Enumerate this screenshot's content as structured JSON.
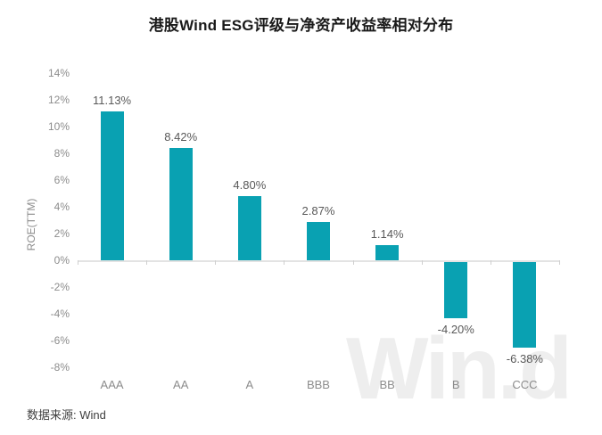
{
  "chart_data": {
    "type": "bar",
    "title": "港股Wind ESG评级与净资产收益率相对分布",
    "categories": [
      "AAA",
      "AA",
      "A",
      "BBB",
      "BB",
      "B",
      "CCC"
    ],
    "values": [
      11.13,
      8.42,
      4.8,
      2.87,
      1.14,
      -4.2,
      -6.38
    ],
    "value_labels": [
      "11.13%",
      "8.42%",
      "4.80%",
      "2.87%",
      "1.14%",
      "-4.20%",
      "-6.38%"
    ],
    "xlabel": "",
    "ylabel": "ROE(TTM)",
    "y_axis": {
      "min": -8,
      "max": 14,
      "step": 2,
      "tick_labels": [
        "14%",
        "12%",
        "10%",
        "8%",
        "6%",
        "4%",
        "2%",
        "0%",
        "-2%",
        "-4%",
        "-6%",
        "-8%"
      ]
    },
    "grid": false,
    "legend": null,
    "colors": {
      "bar": "#09a1b2",
      "title_text": "#1a1a1a",
      "tick_text": "#8c8c8c",
      "value_text": "#595959",
      "axis_line": "#e3e3e3",
      "watermark_text": "#eeeeee",
      "source_text": "#404040"
    },
    "watermark": "Win.d",
    "source_label": "数据来源: Wind"
  }
}
